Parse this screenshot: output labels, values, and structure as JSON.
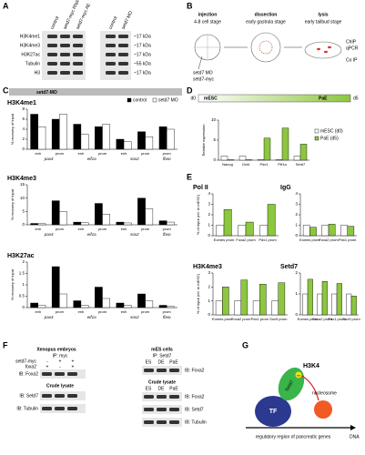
{
  "letters": [
    "A",
    "B",
    "C",
    "D",
    "E",
    "F",
    "G"
  ],
  "A": {
    "columns": [
      "control",
      "setd7-myc RNA",
      "setd7-myc AE",
      "control",
      "setd7 MO"
    ],
    "rows": [
      "H3K4me1",
      "H3K4me3",
      "H3K27ac",
      "Tubulin",
      "H3"
    ],
    "sizes": [
      "~17 kDa",
      "~17 kDa",
      "~17 kDa",
      "~55 kDa",
      "~17 kDa"
    ]
  },
  "B": {
    "steps": [
      "injection",
      "dissection",
      "lysis"
    ],
    "stages": [
      "4-8 cell stage",
      "early gastrula stage",
      "early tailbud stage"
    ],
    "injected": [
      "setd7 MO",
      "setd7-myc"
    ],
    "assays": [
      "ChIP",
      "qPCR",
      "Co IP"
    ]
  },
  "C": {
    "header": "setd7-MO"
  },
  "D": {
    "start": "d0",
    "end": "d5",
    "from": "mESC",
    "to": "PaE"
  },
  "F": {
    "left": {
      "title": "Xenopus embryos",
      "ip": "IP: myc",
      "conditions": [
        "setd7-myc",
        "foxa2"
      ],
      "marks": [
        [
          "-",
          "+",
          "+"
        ],
        [
          "+",
          "-",
          "+"
        ]
      ],
      "ip_blot": "IB: Foxa2",
      "crude": "Crude lysate",
      "blots": [
        "IB: Setd7",
        "IB: Tubulin"
      ]
    },
    "right": {
      "title": "mES cells",
      "ip": "IP: Setd7",
      "lanes": [
        "ES",
        "DE",
        "PaE"
      ],
      "ip_blot": "IB: Foxa2",
      "crude": "Crude lysate",
      "blots": [
        "IB: Foxa2",
        "IB: Setd7",
        "IB: Tubulin"
      ]
    }
  },
  "G": {
    "tf": "TF",
    "enzyme": "Setd7",
    "mark": "H3K4",
    "me": "me",
    "nucleosome": "nucleosome",
    "region": "regulatory region of pancreatic genes",
    "dna": "DNA"
  },
  "chart_data": [
    {
      "type": "bar",
      "title": "H3K4me1",
      "ylabel": "% recovery of input",
      "legend": "top-right",
      "groups": [
        {
          "name": "pax4",
          "categories": [
            "enh",
            "prom"
          ]
        },
        {
          "name": "eif1a",
          "categories": [
            "enh",
            "prom"
          ]
        },
        {
          "name": "sox2",
          "categories": [
            "enh",
            "prom"
          ]
        },
        {
          "name": "fbxo",
          "categories": [
            "prom"
          ]
        }
      ],
      "series": [
        {
          "name": "control",
          "color": "#000000",
          "values": [
            7,
            6,
            5,
            4.5,
            2,
            3.5,
            4.5
          ]
        },
        {
          "name": "setd7 MO",
          "color": "#ffffff",
          "values": [
            4.5,
            7,
            3,
            5,
            1.5,
            2.5,
            4
          ]
        }
      ],
      "ylim": [
        0,
        8
      ],
      "yticks": [
        0,
        2,
        4,
        6,
        8
      ]
    },
    {
      "type": "bar",
      "title": "H3K4me3",
      "ylabel": "% recovery of input",
      "groups": [
        {
          "name": "pax4",
          "categories": [
            "enh",
            "prom"
          ]
        },
        {
          "name": "eif1a",
          "categories": [
            "enh",
            "prom"
          ]
        },
        {
          "name": "sox2",
          "categories": [
            "enh",
            "prom"
          ]
        },
        {
          "name": "fbxo",
          "categories": [
            "prom"
          ]
        }
      ],
      "series": [
        {
          "name": "control",
          "color": "#000000",
          "values": [
            0.5,
            9,
            1,
            8,
            1,
            10,
            1.5
          ]
        },
        {
          "name": "setd7 MO",
          "color": "#ffffff",
          "values": [
            0.4,
            5,
            0.8,
            4,
            0.7,
            6,
            1
          ]
        }
      ],
      "ylim": [
        0,
        15
      ],
      "yticks": [
        0,
        5,
        10,
        15
      ]
    },
    {
      "type": "bar",
      "title": "H3K27ac",
      "ylabel": "% recovery of input",
      "groups": [
        {
          "name": "pax4",
          "categories": [
            "enh",
            "prom"
          ]
        },
        {
          "name": "eif1a",
          "categories": [
            "enh",
            "prom"
          ]
        },
        {
          "name": "sox2",
          "categories": [
            "enh",
            "prom"
          ]
        },
        {
          "name": "fbxo",
          "categories": [
            "prom"
          ]
        }
      ],
      "series": [
        {
          "name": "control",
          "color": "#000000",
          "values": [
            0.2,
            1.8,
            0.3,
            0.9,
            0.2,
            0.6,
            0.1
          ]
        },
        {
          "name": "setd7 MO",
          "color": "#ffffff",
          "values": [
            0.1,
            0.6,
            0.1,
            0.4,
            0.1,
            0.3,
            0.05
          ]
        }
      ],
      "ylim": [
        0,
        2
      ],
      "yticks": [
        0,
        0.5,
        1,
        1.5,
        2
      ]
    },
    {
      "type": "bar",
      "title": "",
      "ylabel": "Relative expression",
      "legend": "right",
      "categories": [
        "Nanog",
        "Oct4",
        "Pdx1",
        "Ptf1a",
        "Setd7"
      ],
      "series": [
        {
          "name": "mESC (d0)",
          "color": "#ffffff",
          "values": [
            1,
            1,
            0.1,
            0.1,
            1
          ]
        },
        {
          "name": "PaE (d5)",
          "color": "#8dc63f",
          "values": [
            0.1,
            0.1,
            5.5,
            8,
            4
          ]
        }
      ],
      "ylim": [
        0,
        10
      ],
      "yticks": [
        0,
        5,
        10
      ]
    },
    {
      "type": "bar",
      "title": "Pol II",
      "ylabel": "% of input (rel. to mESC)",
      "categories": [
        "Eomes prom",
        "Foxa2 prom",
        "Pdx1 prom"
      ],
      "series": [
        {
          "name": "mESC (d0)",
          "color": "#ffffff",
          "values": [
            1,
            1,
            1
          ]
        },
        {
          "name": "PaE (d5)",
          "color": "#8dc63f",
          "values": [
            2.5,
            1.3,
            3
          ]
        }
      ],
      "ylim": [
        0,
        4
      ],
      "yticks": [
        0,
        1,
        2,
        3,
        4
      ]
    },
    {
      "type": "bar",
      "title": "IgG",
      "ylabel": "",
      "categories": [
        "Eomes prom",
        "Foxa2 prom",
        "Pdx1 prom"
      ],
      "series": [
        {
          "name": "mESC (d0)",
          "color": "#ffffff",
          "values": [
            1,
            1,
            1
          ]
        },
        {
          "name": "PaE (d5)",
          "color": "#8dc63f",
          "values": [
            0.8,
            1.1,
            0.9
          ]
        }
      ],
      "ylim": [
        0,
        4
      ],
      "yticks": [
        0,
        1,
        2,
        3,
        4
      ]
    },
    {
      "type": "bar",
      "title": "H3K4me3",
      "ylabel": "% of input (rel. to mESC)",
      "categories": [
        "Eomes prom",
        "Foxa2 prom",
        "Pdx1 prom",
        "Sox9 prom"
      ],
      "series": [
        {
          "name": "mESC (d0)",
          "color": "#ffffff",
          "values": [
            1,
            1,
            1,
            1
          ]
        },
        {
          "name": "PaE (d5)",
          "color": "#8dc63f",
          "values": [
            2,
            2.5,
            2.2,
            2.3
          ]
        }
      ],
      "ylim": [
        0,
        3
      ],
      "yticks": [
        0,
        1,
        2,
        3
      ]
    },
    {
      "type": "bar",
      "title": "Setd7",
      "ylabel": "",
      "categories": [
        "Eomes prom",
        "Foxa2 prom",
        "Pdx1 prom",
        "Sox9 prom"
      ],
      "series": [
        {
          "name": "mESC (d0)",
          "color": "#ffffff",
          "values": [
            1,
            1,
            1,
            1
          ]
        },
        {
          "name": "PaE (d5)",
          "color": "#8dc63f",
          "values": [
            1.7,
            1.6,
            1.5,
            0.9
          ]
        }
      ],
      "ylim": [
        0,
        2
      ],
      "yticks": [
        0,
        1,
        2
      ]
    }
  ]
}
